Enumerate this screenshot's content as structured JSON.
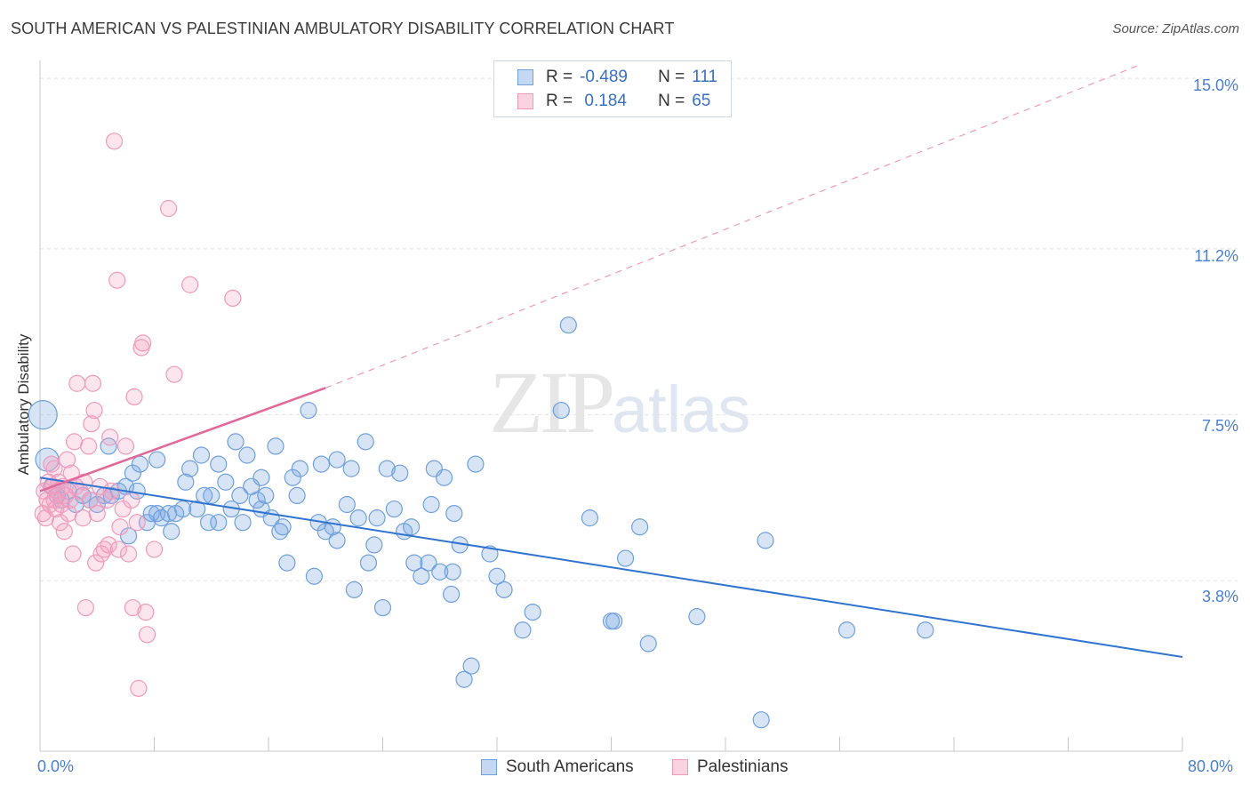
{
  "title": "SOUTH AMERICAN VS PALESTINIAN AMBULATORY DISABILITY CORRELATION CHART",
  "source": "Source: ZipAtlas.com",
  "watermark": {
    "zip": "ZIP",
    "atlas": "atlas"
  },
  "legend": {
    "rows": [
      {
        "r_label": "R = ",
        "r_value": "-0.489",
        "n_label": "N = ",
        "n_value": "111"
      },
      {
        "r_label": "R = ",
        "r_value": " 0.184",
        "n_label": "N = ",
        "n_value": "65"
      }
    ]
  },
  "bottom_legend": {
    "a": "South Americans",
    "b": "Palestinians"
  },
  "y_tick_labels": [
    "15.0%",
    "11.2%",
    "7.5%",
    "3.8%"
  ],
  "x_tick_labels": [
    "0.0%",
    "80.0%"
  ],
  "colors": {
    "blue": "#6fa0de",
    "blue_line": "#2f74d0",
    "pink": "#f19abb",
    "pink_line": "#e2679a"
  },
  "chart_data": {
    "type": "scatter",
    "title": "SOUTH AMERICAN VS PALESTINIAN AMBULATORY DISABILITY CORRELATION CHART",
    "xlabel": "",
    "ylabel": "Ambulatory Disability",
    "xlim": [
      0,
      80
    ],
    "ylim": [
      0,
      15.4
    ],
    "y_ticks": [
      3.8,
      7.5,
      11.2,
      15.0
    ],
    "grid": "horizontal dashed",
    "legend_position": "top-center",
    "series": [
      {
        "name": "South Americans",
        "color": "#6fa0de",
        "trend": {
          "x": [
            0,
            80
          ],
          "y": [
            6.1,
            2.1
          ],
          "style": "solid"
        },
        "points": [
          [
            0.2,
            7.5
          ],
          [
            0.5,
            6.5
          ],
          [
            0.8,
            5.9
          ],
          [
            1.2,
            5.7
          ],
          [
            1.5,
            5.6
          ],
          [
            2.0,
            5.8
          ],
          [
            2.5,
            5.5
          ],
          [
            3.0,
            5.7
          ],
          [
            3.5,
            5.6
          ],
          [
            4.0,
            5.5
          ],
          [
            4.5,
            5.7
          ],
          [
            4.8,
            6.8
          ],
          [
            5.0,
            5.7
          ],
          [
            5.5,
            5.8
          ],
          [
            6.0,
            5.9
          ],
          [
            6.2,
            4.8
          ],
          [
            6.5,
            6.2
          ],
          [
            6.8,
            5.8
          ],
          [
            7.0,
            6.4
          ],
          [
            7.5,
            5.1
          ],
          [
            7.8,
            5.3
          ],
          [
            8.2,
            5.3
          ],
          [
            8.2,
            6.5
          ],
          [
            8.5,
            5.2
          ],
          [
            9.0,
            5.3
          ],
          [
            9.2,
            4.9
          ],
          [
            9.5,
            5.3
          ],
          [
            10.0,
            5.4
          ],
          [
            10.2,
            6.0
          ],
          [
            10.5,
            6.3
          ],
          [
            11.0,
            5.4
          ],
          [
            11.3,
            6.6
          ],
          [
            11.5,
            5.7
          ],
          [
            11.8,
            5.1
          ],
          [
            12.0,
            5.7
          ],
          [
            12.5,
            6.4
          ],
          [
            12.5,
            5.1
          ],
          [
            13.0,
            6.0
          ],
          [
            13.4,
            5.4
          ],
          [
            13.7,
            6.9
          ],
          [
            14.0,
            5.7
          ],
          [
            14.2,
            5.1
          ],
          [
            14.5,
            6.6
          ],
          [
            14.8,
            5.9
          ],
          [
            15.2,
            5.6
          ],
          [
            15.5,
            5.4
          ],
          [
            15.5,
            6.1
          ],
          [
            15.8,
            5.7
          ],
          [
            16.2,
            5.2
          ],
          [
            16.5,
            6.8
          ],
          [
            16.8,
            4.9
          ],
          [
            17.0,
            5.0
          ],
          [
            17.3,
            4.2
          ],
          [
            17.7,
            6.1
          ],
          [
            18.0,
            5.7
          ],
          [
            18.2,
            6.3
          ],
          [
            18.8,
            7.6
          ],
          [
            19.2,
            3.9
          ],
          [
            19.5,
            5.1
          ],
          [
            19.7,
            6.4
          ],
          [
            20.0,
            4.9
          ],
          [
            20.5,
            5.0
          ],
          [
            20.8,
            6.5
          ],
          [
            20.8,
            4.7
          ],
          [
            21.5,
            5.5
          ],
          [
            21.8,
            6.3
          ],
          [
            22.0,
            3.6
          ],
          [
            22.3,
            5.2
          ],
          [
            22.8,
            6.9
          ],
          [
            23.0,
            4.2
          ],
          [
            23.4,
            4.6
          ],
          [
            23.6,
            5.2
          ],
          [
            24.0,
            3.2
          ],
          [
            24.3,
            6.3
          ],
          [
            24.8,
            5.4
          ],
          [
            25.2,
            6.2
          ],
          [
            25.5,
            4.9
          ],
          [
            26.0,
            5.0
          ],
          [
            26.2,
            4.2
          ],
          [
            26.7,
            3.9
          ],
          [
            27.2,
            4.2
          ],
          [
            27.4,
            5.5
          ],
          [
            27.6,
            6.3
          ],
          [
            28.0,
            4.0
          ],
          [
            28.3,
            6.1
          ],
          [
            28.8,
            3.5
          ],
          [
            28.9,
            4.0
          ],
          [
            29.0,
            5.3
          ],
          [
            29.4,
            4.6
          ],
          [
            29.7,
            1.6
          ],
          [
            30.2,
            1.9
          ],
          [
            30.5,
            6.4
          ],
          [
            31.5,
            4.4
          ],
          [
            32.0,
            3.9
          ],
          [
            32.5,
            3.6
          ],
          [
            33.8,
            2.7
          ],
          [
            34.5,
            3.1
          ],
          [
            36.5,
            7.6
          ],
          [
            37.0,
            9.5
          ],
          [
            38.5,
            5.2
          ],
          [
            40.0,
            2.9
          ],
          [
            40.2,
            2.9
          ],
          [
            41.0,
            4.3
          ],
          [
            42.0,
            5.0
          ],
          [
            42.6,
            2.4
          ],
          [
            46.0,
            3.0
          ],
          [
            50.5,
            0.7
          ],
          [
            50.8,
            4.7
          ],
          [
            56.5,
            2.7
          ],
          [
            62.0,
            2.7
          ]
        ]
      },
      {
        "name": "Palestinians",
        "color": "#f19abb",
        "trend": {
          "x": [
            0,
            20
          ],
          "y": [
            5.8,
            8.1
          ],
          "style": "solid",
          "extended": {
            "x": [
              20,
              77
            ],
            "y": [
              8.1,
              15.3
            ],
            "style": "dashed"
          }
        },
        "points": [
          [
            0.2,
            5.3
          ],
          [
            0.3,
            5.8
          ],
          [
            0.4,
            5.2
          ],
          [
            0.5,
            5.6
          ],
          [
            0.6,
            6.0
          ],
          [
            0.7,
            5.5
          ],
          [
            0.8,
            6.4
          ],
          [
            0.9,
            5.9
          ],
          [
            1.0,
            5.6
          ],
          [
            1.0,
            6.3
          ],
          [
            1.1,
            5.4
          ],
          [
            1.2,
            5.8
          ],
          [
            1.3,
            6.0
          ],
          [
            1.4,
            5.1
          ],
          [
            1.5,
            5.5
          ],
          [
            1.6,
            5.9
          ],
          [
            1.7,
            4.9
          ],
          [
            1.8,
            5.7
          ],
          [
            1.9,
            6.5
          ],
          [
            2.0,
            5.3
          ],
          [
            2.1,
            5.6
          ],
          [
            2.2,
            6.2
          ],
          [
            2.3,
            4.4
          ],
          [
            2.4,
            6.9
          ],
          [
            2.5,
            5.9
          ],
          [
            2.6,
            8.2
          ],
          [
            2.8,
            5.8
          ],
          [
            3.0,
            5.2
          ],
          [
            3.1,
            6.0
          ],
          [
            3.2,
            3.2
          ],
          [
            3.4,
            6.8
          ],
          [
            3.5,
            5.6
          ],
          [
            3.6,
            7.3
          ],
          [
            3.7,
            8.2
          ],
          [
            3.8,
            7.6
          ],
          [
            3.9,
            4.2
          ],
          [
            4.0,
            5.3
          ],
          [
            4.2,
            5.9
          ],
          [
            4.3,
            4.4
          ],
          [
            4.5,
            4.5
          ],
          [
            4.7,
            5.6
          ],
          [
            4.8,
            4.6
          ],
          [
            4.9,
            7.0
          ],
          [
            5.0,
            5.8
          ],
          [
            5.2,
            13.6
          ],
          [
            5.4,
            10.5
          ],
          [
            5.5,
            4.5
          ],
          [
            5.6,
            5.0
          ],
          [
            5.8,
            5.4
          ],
          [
            6.0,
            6.8
          ],
          [
            6.2,
            4.4
          ],
          [
            6.4,
            5.6
          ],
          [
            6.5,
            3.2
          ],
          [
            6.6,
            7.9
          ],
          [
            6.8,
            5.1
          ],
          [
            6.9,
            1.4
          ],
          [
            7.1,
            9.0
          ],
          [
            7.2,
            9.1
          ],
          [
            7.4,
            3.1
          ],
          [
            7.5,
            2.6
          ],
          [
            8.0,
            4.5
          ],
          [
            9.0,
            12.1
          ],
          [
            9.4,
            8.4
          ],
          [
            10.5,
            10.4
          ],
          [
            13.5,
            10.1
          ]
        ]
      }
    ]
  }
}
